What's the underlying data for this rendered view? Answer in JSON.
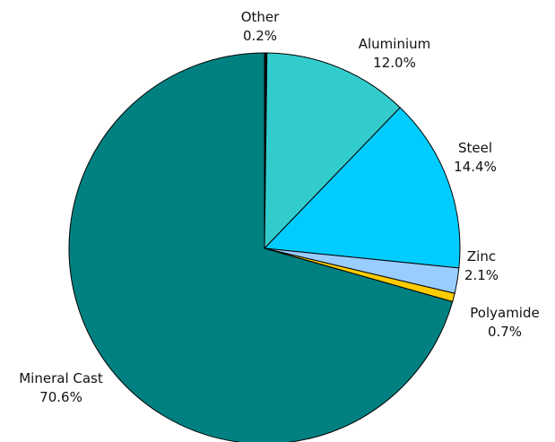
{
  "chart_data": {
    "type": "pie",
    "title": "",
    "start_angle_deg": 0,
    "direction": "clockwise",
    "slices": [
      {
        "label": "Other",
        "value": 0.2,
        "display": "0.2%",
        "color": "#0b0b0b"
      },
      {
        "label": "Aluminium",
        "value": 12.0,
        "display": "12.0%",
        "color": "#33cccc"
      },
      {
        "label": "Steel",
        "value": 14.4,
        "display": "14.4%",
        "color": "#00ccff"
      },
      {
        "label": "Zinc",
        "value": 2.1,
        "display": "2.1%",
        "color": "#99ccff"
      },
      {
        "label": "Polyamide",
        "value": 0.7,
        "display": "0.7%",
        "color": "#ffcc00"
      },
      {
        "label": "Mineral Cast",
        "value": 70.6,
        "display": "70.6%",
        "color": "#008080"
      }
    ]
  }
}
